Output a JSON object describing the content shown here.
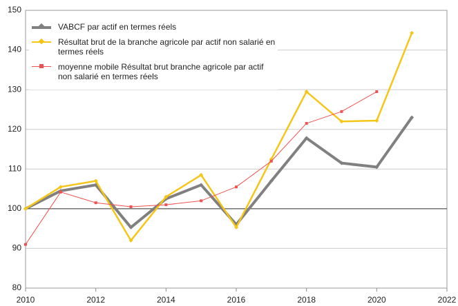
{
  "chart_data": {
    "type": "line",
    "x": [
      2010,
      2011,
      2012,
      2013,
      2014,
      2015,
      2016,
      2017,
      2018,
      2019,
      2020,
      2021
    ],
    "series": [
      {
        "name": "VABCF par actif en termes réels",
        "color": "#808080",
        "values": [
          100,
          104.5,
          106,
          95.3,
          102.5,
          106,
          96,
          107,
          117.8,
          111.5,
          110.5,
          123
        ]
      },
      {
        "name": "Résultat brut de la branche agricole par actif non salarié en termes réels",
        "color": "#f5c518",
        "values": [
          100,
          105.5,
          107,
          92,
          103,
          108.5,
          95.3,
          112.5,
          129.5,
          122,
          122.2,
          144.3
        ]
      },
      {
        "name": "moyenne mobile Résultat brut branche agricole par actif non salarié en termes réels",
        "color": "#f05050",
        "values": [
          91,
          104.2,
          101.5,
          100.5,
          101,
          102,
          105.5,
          112,
          121.5,
          124.5,
          129.5,
          null
        ]
      }
    ],
    "xlim": [
      2010,
      2022
    ],
    "xticks": [
      2010,
      2012,
      2014,
      2016,
      2018,
      2020,
      2022
    ],
    "ylim": [
      80,
      150
    ],
    "yticks": [
      80,
      90,
      100,
      110,
      120,
      130,
      140,
      150
    ],
    "reference_line": 100,
    "grid": true,
    "legend": "upper left"
  }
}
